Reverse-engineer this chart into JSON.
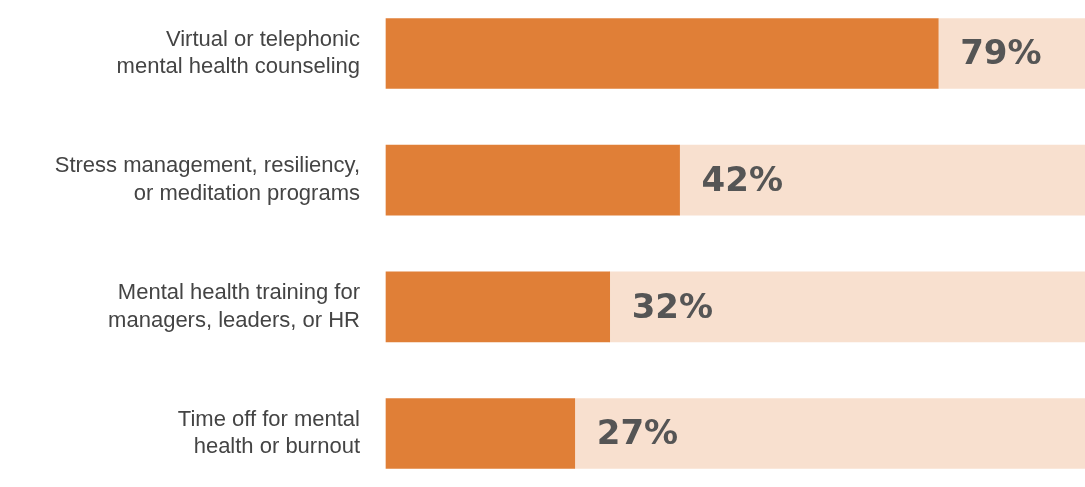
{
  "chart_data": {
    "type": "bar",
    "orientation": "horizontal",
    "stacked": true,
    "categories": [
      "Virtual or telephonic\nmental health counseling",
      "Stress management, resiliency,\nor meditation programs",
      "Mental health training for\nmanagers, leaders, or HR",
      "Time off for mental\nhealth or burnout"
    ],
    "series": [
      {
        "color": "#e07f37",
        "values": [
          79,
          42,
          32,
          27
        ],
        "value_labels": [
          "79%",
          "42%",
          "32%",
          "27%"
        ]
      },
      {
        "color": "#f8e0cf",
        "values": [
          21,
          58,
          68,
          73
        ]
      }
    ],
    "legend": false,
    "grid": false,
    "tick_labels": "y"
  }
}
